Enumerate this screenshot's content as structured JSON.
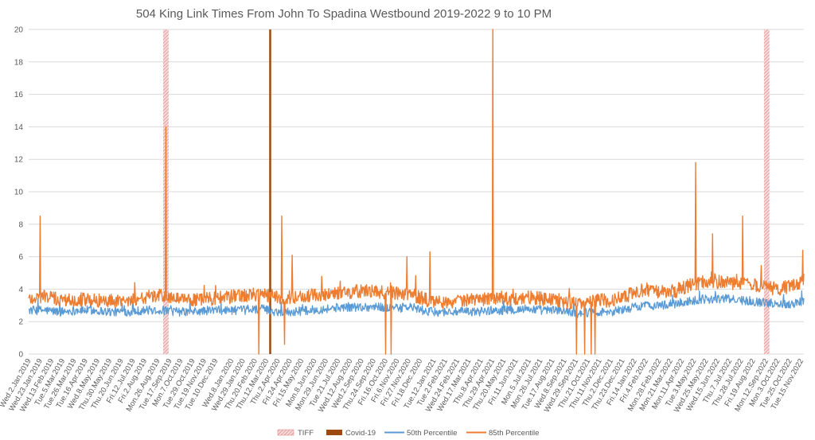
{
  "chart_data": {
    "type": "line",
    "title": "504 King Link Times From John To Spadina Westbound 2019-2022 9 to 10 PM",
    "xlabel": "",
    "ylabel": "",
    "ylim": [
      0,
      20
    ],
    "y_ticks": [
      "0",
      "2",
      "4",
      "6",
      "8",
      "10",
      "12",
      "14",
      "16",
      "18",
      "20"
    ],
    "grid": "horizontal",
    "legend_position": "bottom",
    "x_range": [
      "Wed.2.Jan.2019",
      "Sun.20.Nov.2022"
    ],
    "x_tick_labels": [
      "Wed.2.Jan.2019",
      "Wed.23.Jan.2019",
      "Wed.13.Feb.2019",
      "Tue.5.Mar.2019",
      "Tue.26.Mar.2019",
      "Tue.16.Apr.2019",
      "Wed.8.May.2019",
      "Thu.30.May.2019",
      "Thu.20.Jun.2019",
      "Fri.12.Jul.2019",
      "Fri.2.Aug.2019",
      "Mon.26.Aug.2019",
      "Tue.17.Sep.2019",
      "Mon.7.Oct.2019",
      "Tue.29.Oct.2019",
      "Tue.19.Nov.2019",
      "Tue.10.Dec.2019",
      "Wed.8.Jan.2020",
      "Wed.29.Jan.2020",
      "Thu.20.Feb.2020",
      "Thu.12.Mar.2020",
      "Thu.2.Apr.2020",
      "Fri.24.Apr.2020",
      "Fri.15.May.2020",
      "Mon.8.Jun.2020",
      "Mon.29.Jun.2020",
      "Tue.21.Jul.2020",
      "Wed.12.Aug.2020",
      "Wed.2.Sep.2020",
      "Thu.24.Sep.2020",
      "Fri.16.Oct.2020",
      "Fri.6.Nov.2020",
      "Fri.27.Nov.2020",
      "Fri.18.Dec.2020",
      "Tue.12.Jan.2021",
      "Tue.2.Feb.2021",
      "Wed.24.Feb.2021",
      "Wed.17.Mar.2021",
      "Thu.8.Apr.2021",
      "Thu.29.Apr.2021",
      "Thu.20.May.2021",
      "Fri.11.Jun.2021",
      "Mon.5.Jul.2021",
      "Mon.26.Jul.2021",
      "Tue.17.Aug.2021",
      "Wed.8.Sep.2021",
      "Wed.29.Sep.2021",
      "Thu.21.Oct.2021",
      "Thu.11.Nov.2021",
      "Thu.2.Dec.2021",
      "Thu.23.Dec.2021",
      "Fri.14.Jan.2022",
      "Fri.4.Feb.2022",
      "Mon.28.Feb.2022",
      "Mon.21.Mar.2022",
      "Mon.11.Apr.2022",
      "Tue.3.May.2022",
      "Wed.25.May.2022",
      "Wed.15.Jun.2022",
      "Thu.7.Jul.2022",
      "Thu.28.Jul.2022",
      "Fri.19.Aug.2022",
      "Mon.12.Sep.2022",
      "Mon.3.Oct.2022",
      "Tue.25.Oct.2022",
      "Tue.15.Nov.2022"
    ],
    "events": [
      {
        "name": "TIFF",
        "color": "#e8a0a0",
        "pattern": "hatched",
        "periods": [
          [
            "2019-09-05",
            "2019-09-15"
          ],
          [
            "2022-09-08",
            "2022-09-18"
          ]
        ]
      },
      {
        "name": "Covid-19",
        "color": "#9e4a0e",
        "pattern": "solid",
        "periods": [
          [
            "2020-03-17",
            "2020-03-20"
          ]
        ]
      }
    ],
    "series": [
      {
        "name": "50th Percentile",
        "color": "#5b9bd5",
        "x": [
          "2019-01-02",
          "2019-02-01",
          "2019-03-01",
          "2019-04-01",
          "2019-05-01",
          "2019-06-01",
          "2019-07-01",
          "2019-08-01",
          "2019-09-01",
          "2019-10-01",
          "2019-11-01",
          "2019-12-01",
          "2020-01-01",
          "2020-02-01",
          "2020-03-01",
          "2020-04-01",
          "2020-05-01",
          "2020-06-01",
          "2020-07-01",
          "2020-08-01",
          "2020-09-01",
          "2020-10-01",
          "2020-11-01",
          "2020-12-01",
          "2021-01-01",
          "2021-02-01",
          "2021-03-01",
          "2021-04-01",
          "2021-05-01",
          "2021-06-01",
          "2021-07-01",
          "2021-08-01",
          "2021-09-01",
          "2021-10-01",
          "2021-11-01",
          "2021-12-01",
          "2022-01-01",
          "2022-02-01",
          "2022-03-01",
          "2022-04-01",
          "2022-05-01",
          "2022-06-01",
          "2022-07-01",
          "2022-08-01",
          "2022-09-01",
          "2022-10-01",
          "2022-11-01",
          "2022-11-20"
        ],
        "y": [
          2.7,
          2.7,
          2.6,
          2.7,
          2.7,
          2.6,
          2.6,
          2.7,
          2.7,
          2.6,
          2.6,
          2.7,
          2.7,
          2.7,
          2.8,
          2.6,
          2.6,
          2.7,
          2.8,
          2.9,
          2.9,
          2.9,
          2.8,
          2.9,
          2.6,
          2.6,
          2.6,
          2.6,
          2.7,
          2.7,
          2.8,
          2.7,
          2.7,
          2.5,
          2.6,
          2.6,
          2.8,
          3.0,
          3.0,
          3.1,
          3.3,
          3.4,
          3.4,
          3.3,
          3.2,
          3.1,
          3.1,
          3.3
        ]
      },
      {
        "name": "85th Percentile",
        "color": "#ed7d31",
        "x": [
          "2019-01-02",
          "2019-02-01",
          "2019-03-01",
          "2019-04-01",
          "2019-05-01",
          "2019-06-01",
          "2019-07-01",
          "2019-08-01",
          "2019-09-01",
          "2019-10-01",
          "2019-11-01",
          "2019-12-01",
          "2020-01-01",
          "2020-02-01",
          "2020-03-01",
          "2020-04-01",
          "2020-05-01",
          "2020-06-01",
          "2020-07-01",
          "2020-08-01",
          "2020-09-01",
          "2020-10-01",
          "2020-11-01",
          "2020-12-01",
          "2021-01-01",
          "2021-02-01",
          "2021-03-01",
          "2021-04-01",
          "2021-05-01",
          "2021-06-01",
          "2021-07-01",
          "2021-08-01",
          "2021-09-01",
          "2021-10-01",
          "2021-11-01",
          "2021-12-01",
          "2022-01-01",
          "2022-02-01",
          "2022-03-01",
          "2022-04-01",
          "2022-05-01",
          "2022-06-01",
          "2022-07-01",
          "2022-08-01",
          "2022-09-01",
          "2022-10-01",
          "2022-11-01",
          "2022-11-20"
        ],
        "y": [
          3.4,
          3.6,
          3.3,
          3.4,
          3.3,
          3.3,
          3.3,
          3.5,
          3.6,
          3.4,
          3.3,
          3.4,
          3.5,
          3.6,
          3.7,
          3.5,
          3.5,
          3.6,
          3.7,
          3.8,
          3.9,
          3.8,
          3.8,
          3.7,
          3.3,
          3.2,
          3.3,
          3.3,
          3.5,
          3.4,
          3.5,
          3.4,
          3.3,
          3.1,
          3.3,
          3.3,
          3.6,
          4.0,
          3.8,
          3.9,
          4.3,
          4.5,
          4.4,
          4.3,
          4.2,
          4.0,
          4.2,
          4.6
        ]
      }
    ],
    "annotations": [
      {
        "series": "85th Percentile",
        "x": "2019-01-23",
        "y": 8.5
      },
      {
        "series": "85th Percentile",
        "x": "2019-09-10",
        "y": 14.0
      },
      {
        "series": "85th Percentile",
        "x": "2020-04-09",
        "y": 8.5
      },
      {
        "series": "85th Percentile",
        "x": "2020-04-28",
        "y": 6.1
      },
      {
        "series": "85th Percentile",
        "x": "2020-11-24",
        "y": 6.0
      },
      {
        "series": "85th Percentile",
        "x": "2021-01-05",
        "y": 6.3
      },
      {
        "series": "85th Percentile",
        "x": "2021-04-30",
        "y": 20.0
      },
      {
        "series": "85th Percentile",
        "x": "2022-05-06",
        "y": 11.8
      },
      {
        "series": "85th Percentile",
        "x": "2022-06-06",
        "y": 7.4
      },
      {
        "series": "85th Percentile",
        "x": "2022-07-31",
        "y": 8.5
      },
      {
        "series": "85th Percentile",
        "x": "2022-11-18",
        "y": 6.4
      },
      {
        "series": "85th Percentile",
        "x": "2020-02-27",
        "y": 0.0
      },
      {
        "series": "85th Percentile",
        "x": "2020-04-14",
        "y": 0.6
      },
      {
        "series": "85th Percentile",
        "x": "2020-10-16",
        "y": 0.0
      },
      {
        "series": "85th Percentile",
        "x": "2020-10-26",
        "y": 0.0
      },
      {
        "series": "85th Percentile",
        "x": "2021-09-30",
        "y": 0.0
      },
      {
        "series": "85th Percentile",
        "x": "2021-10-15",
        "y": 0.0
      },
      {
        "series": "85th Percentile",
        "x": "2021-10-27",
        "y": 0.0
      },
      {
        "series": "85th Percentile",
        "x": "2021-11-03",
        "y": 0.0
      }
    ],
    "legend": [
      "TIFF",
      "Covid-19",
      "50th Percentile",
      "85th Percentile"
    ]
  }
}
